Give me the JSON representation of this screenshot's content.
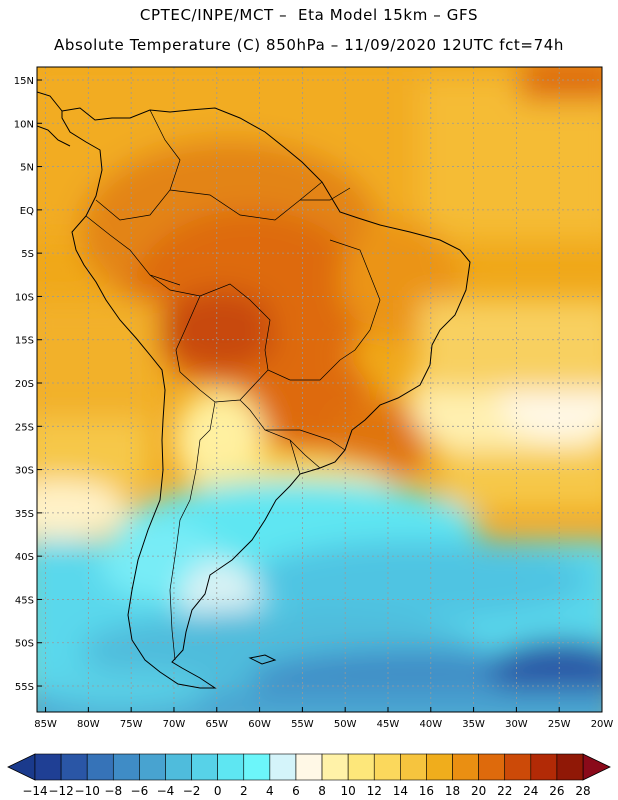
{
  "header": {
    "line1": "CPTEC/INPE/MCT –  Eta Model 15km – GFS",
    "line2": "Absolute Temperature (C) 850hPa – 11/09/2020 12UTC fct=74h"
  },
  "map": {
    "lat_labels": [
      "15N",
      "10N",
      "5N",
      "EQ",
      "5S",
      "10S",
      "15S",
      "20S",
      "25S",
      "30S",
      "35S",
      "40S",
      "45S",
      "50S",
      "55S"
    ],
    "lon_labels": [
      "85W",
      "80W",
      "75W",
      "70W",
      "65W",
      "60W",
      "55W",
      "50W",
      "45W",
      "40W",
      "35W",
      "30W",
      "25W",
      "20W"
    ]
  },
  "colorbar": {
    "labels": [
      "-14",
      "-12",
      "-10",
      "-8",
      "-6",
      "-4",
      "-2",
      "0",
      "2",
      "4",
      "6",
      "8",
      "10",
      "12",
      "14",
      "16",
      "18",
      "20",
      "22",
      "24",
      "26",
      "28"
    ],
    "colors": [
      "#1f3f94",
      "#2a56a6",
      "#3673b8",
      "#3f8cc6",
      "#48a3d0",
      "#4fbcdc",
      "#57d2e8",
      "#5ee6f2",
      "#6cf6fa",
      "#d4f4fa",
      "#fff8e6",
      "#fff2a8",
      "#fde77a",
      "#fbd85c",
      "#f6c43e",
      "#f0ad1c",
      "#ea8f12",
      "#de6a0c",
      "#cc4a08",
      "#b22a06",
      "#901806"
    ],
    "low_color": "#1a3a8c",
    "high_color": "#8a0a1a"
  }
}
